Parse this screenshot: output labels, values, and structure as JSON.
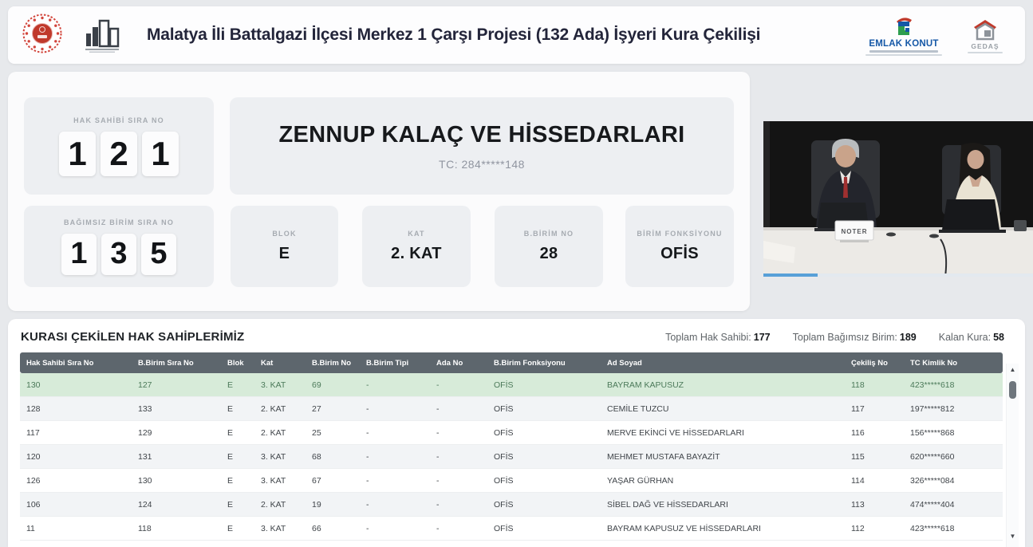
{
  "header": {
    "title": "Malatya İli Battalgazi İlçesi Merkez 1 Çarşı Projesi (132 Ada) İşyeri Kura Çekilişi",
    "logos": {
      "emlak_konut": "EMLAK KONUT",
      "gedas": "GEDAŞ"
    }
  },
  "current_draw": {
    "hak_sahibi": {
      "label": "HAK SAHİBİ SIRA NO",
      "digits": [
        "1",
        "2",
        "1"
      ]
    },
    "winner": {
      "name": "ZENNUP KALAÇ VE HİSSEDARLARI",
      "tc": "TC: 284*****148"
    },
    "bagimsiz_birim": {
      "label": "BAĞIMSIZ BİRİM SIRA NO",
      "digits": [
        "1",
        "3",
        "5"
      ]
    },
    "info_cards": [
      {
        "label": "BLOK",
        "value": "E"
      },
      {
        "label": "KAT",
        "value": "2. KAT"
      },
      {
        "label": "B.BİRİM NO",
        "value": "28"
      },
      {
        "label": "BİRİM FONKSİYONU",
        "value": "OFİS"
      }
    ]
  },
  "video": {
    "placard": "NOTER"
  },
  "table_section": {
    "title": "KURASI ÇEKİLEN HAK SAHİPLERİMİZ",
    "stats": [
      {
        "label": "Toplam Hak Sahibi:",
        "value": "177"
      },
      {
        "label": "Toplam Bağımsız Birim:",
        "value": "189"
      },
      {
        "label": "Kalan Kura:",
        "value": "58"
      }
    ],
    "columns": [
      "Hak Sahibi Sıra No",
      "B.Birim Sıra No",
      "Blok",
      "Kat",
      "B.Birim No",
      "B.Birim Tipi",
      "Ada No",
      "B.Birim Fonksiyonu",
      "Ad Soyad",
      "Çekiliş No",
      "TC Kimlik No"
    ],
    "rows": [
      [
        "130",
        "127",
        "E",
        "3. KAT",
        "69",
        "-",
        "-",
        "OFİS",
        "BAYRAM KAPUSUZ",
        "118",
        "423*****618"
      ],
      [
        "128",
        "133",
        "E",
        "2. KAT",
        "27",
        "-",
        "-",
        "OFİS",
        "CEMİLE TUZCU",
        "117",
        "197*****812"
      ],
      [
        "117",
        "129",
        "E",
        "2. KAT",
        "25",
        "-",
        "-",
        "OFİS",
        "MERVE EKİNCİ VE HİSSEDARLARI",
        "116",
        "156*****868"
      ],
      [
        "120",
        "131",
        "E",
        "3. KAT",
        "68",
        "-",
        "-",
        "OFİS",
        "MEHMET MUSTAFA BAYAZİT",
        "115",
        "620*****660"
      ],
      [
        "126",
        "130",
        "E",
        "3. KAT",
        "67",
        "-",
        "-",
        "OFİS",
        "YAŞAR GÜRHAN",
        "114",
        "326*****084"
      ],
      [
        "106",
        "124",
        "E",
        "2. KAT",
        "19",
        "-",
        "-",
        "OFİS",
        "SİBEL DAĞ VE HİSSEDARLARI",
        "113",
        "474*****404"
      ],
      [
        "11",
        "118",
        "E",
        "3. KAT",
        "66",
        "-",
        "-",
        "OFİS",
        "BAYRAM KAPUSUZ VE HİSSEDARLARI",
        "112",
        "423*****618"
      ]
    ]
  },
  "icons": {
    "scroll_up": "▲",
    "scroll_down": "▼"
  },
  "colors": {
    "highlight_row": "#d7ebd9",
    "table_header": "#5d666d",
    "emlak_blue": "#1558a7",
    "seal_red": "#c0392b"
  }
}
